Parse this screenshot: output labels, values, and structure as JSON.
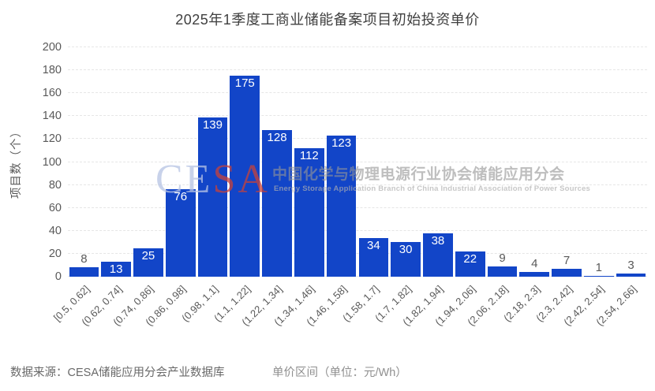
{
  "title": "2025年1季度工商业储能备案项目初始投资单价",
  "chart_data": {
    "type": "bar",
    "title": "2025年1季度工商业储能备案项目初始投资单价",
    "xlabel": "单价区间（单位：元/Wh）",
    "ylabel": "项目数（个）",
    "ylim": [
      0,
      200
    ],
    "yticks": [
      0,
      20,
      40,
      60,
      80,
      100,
      120,
      140,
      160,
      180,
      200
    ],
    "grid": true,
    "categories": [
      "[0.5, 0.62]",
      "(0.62, 0.74]",
      "(0.74, 0.86]",
      "(0.86, 0.98]",
      "(0.98, 1.1]",
      "(1.1, 1.22]",
      "(1.22, 1.34]",
      "(1.34, 1.46]",
      "(1.46, 1.58]",
      "(1.58, 1.7]",
      "(1.7, 1.82]",
      "(1.82, 1.94]",
      "(1.94, 2.06]",
      "(2.06, 2.18]",
      "(2.18, 2.3]",
      "(2.3, 2.42]",
      "(2.42, 2.54]",
      "(2.54, 2.66]"
    ],
    "values": [
      8,
      13,
      25,
      76,
      139,
      175,
      128,
      112,
      123,
      34,
      30,
      38,
      22,
      9,
      4,
      7,
      1,
      3
    ],
    "bar_color": "#1245C8",
    "label_inside_color": "#FFFFFF",
    "label_outside_color": "#595959",
    "gridline_color": "#E6E6E6",
    "legend": "none"
  },
  "watermark": {
    "logo_parts": [
      {
        "text": "CE",
        "color": "#B6C3E4"
      },
      {
        "text": "SA",
        "color": "#C8413A"
      }
    ],
    "cn": "中国化学与物理电源行业协会储能应用分会",
    "en": "Energy Storage Application Branch of China Industrial Association of Power Sources"
  },
  "footer": {
    "source": "数据来源：CESA储能应用分会产业数据库",
    "xaxis_title": "单价区间（单位：元/Wh）"
  }
}
